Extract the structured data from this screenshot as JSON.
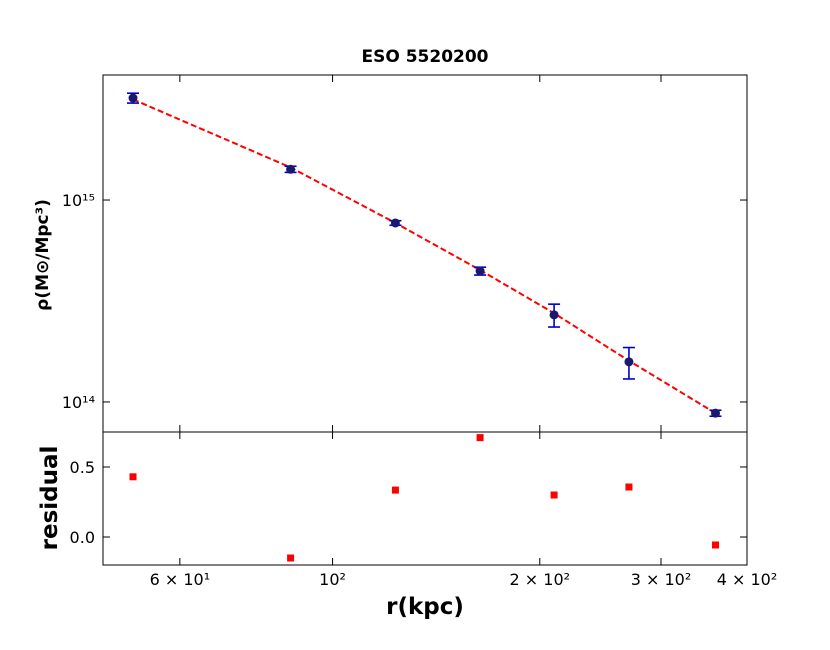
{
  "chart_data": [
    {
      "type": "scatter",
      "title": "ESO 5520200",
      "ylabel": "ρ(M⊙/Mpc³)",
      "x": [
        51.3,
        86.9,
        123.4,
        163.8,
        209.8,
        269.5,
        360
      ],
      "xlim": [
        46.4,
        400
      ],
      "xlog": true,
      "ylog": true,
      "ylim": [
        71000000000000.0,
        4160000000000000.0
      ],
      "yticks": [
        {
          "value": 100000000000000.0,
          "label": "10¹⁴"
        },
        {
          "value": 1000000000000000.0,
          "label": "10¹⁵"
        }
      ],
      "series": [
        {
          "color": "#191970",
          "error_color": "#0000cd",
          "values": [
            3200000000000000.0,
            1420000000000000.0,
            770000000000000.0,
            445000000000000.0,
            270000000000000.0,
            158000000000000.0,
            88000000000000.0
          ],
          "errors": [
            180000000000000.0,
            50000000000000.0,
            20000000000000.0,
            20000000000000.0,
            35000000000000.0,
            28000000000000.0,
            3000000000000.0
          ]
        }
      ],
      "fit": {
        "color": "#ff0000",
        "linestyle": "dashed",
        "values": [
          3150000000000000.0,
          1450000000000000.0,
          770000000000000.0,
          450000000000000.0,
          275000000000000.0,
          160000000000000.0,
          88000000000000.0
        ]
      }
    },
    {
      "type": "scatter",
      "ylabel": "residual",
      "xlabel": "r(kpc)",
      "x": [
        51.3,
        86.9,
        123.4,
        163.8,
        209.8,
        269.5,
        360
      ],
      "xlim": [
        46.4,
        400
      ],
      "xlog": true,
      "ylim": [
        -0.2,
        0.75
      ],
      "yticks": [
        {
          "value": 0,
          "label": "0.0"
        },
        {
          "value": 0.5,
          "label": "0.5"
        }
      ],
      "xticks": [
        {
          "value": 60,
          "label": "6 × 10¹"
        },
        {
          "value": 100,
          "label": "10²"
        },
        {
          "value": 200,
          "label": "2 × 10²"
        },
        {
          "value": 300,
          "label": "3 × 10²"
        },
        {
          "value": 400,
          "label": "4 × 10²"
        }
      ],
      "values": [
        0.43,
        -0.15,
        0.335,
        0.71,
        0.3,
        0.357,
        -0.057
      ],
      "color": "#ff0000",
      "marker": "square"
    }
  ]
}
